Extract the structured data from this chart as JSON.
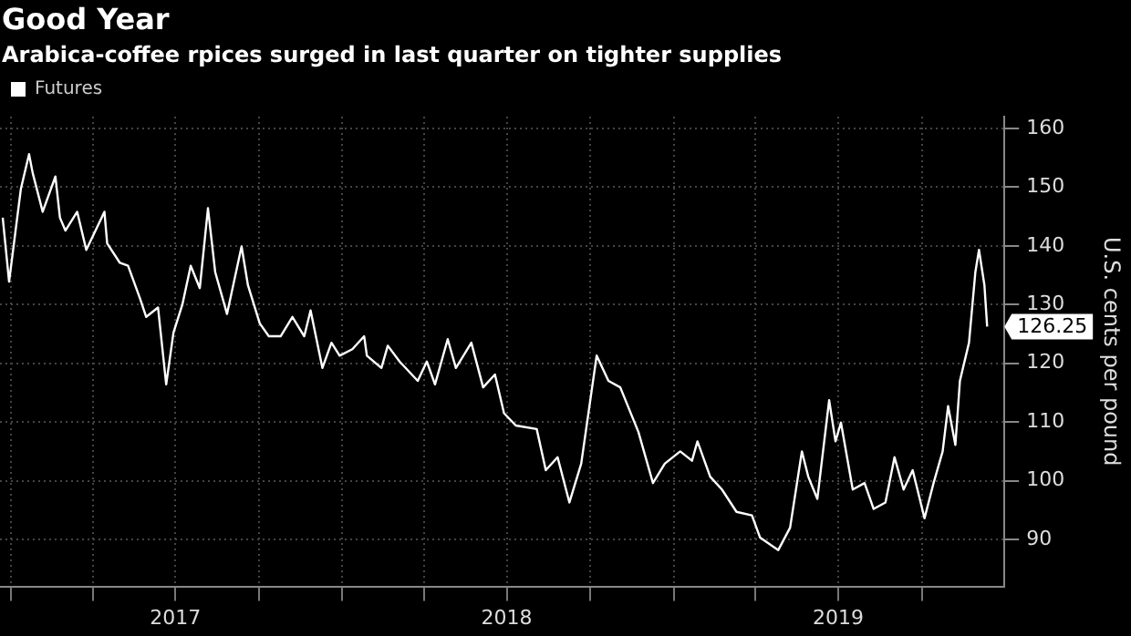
{
  "chart_data": {
    "type": "line",
    "title": "Good Year",
    "subtitle": "Arabica-coffee rpices surged in last quarter on tighter supplies",
    "ylabel": "U.S. cents per pound",
    "legend": "top left",
    "grid": true,
    "marker": "none",
    "line_style": "solid",
    "xlim": [
      "2016-12-20",
      "2019-12-31"
    ],
    "ylim": [
      82,
      162
    ],
    "xticks": [
      {
        "value": "2017-01-01",
        "label": null
      },
      {
        "value": "2017-04-01",
        "label": null
      },
      {
        "value": "2017-07-01",
        "label": "2017"
      },
      {
        "value": "2017-10-01",
        "label": null
      },
      {
        "value": "2018-01-01",
        "label": null
      },
      {
        "value": "2018-04-01",
        "label": null
      },
      {
        "value": "2018-07-01",
        "label": "2018"
      },
      {
        "value": "2018-10-01",
        "label": null
      },
      {
        "value": "2019-01-01",
        "label": null
      },
      {
        "value": "2019-04-01",
        "label": null
      },
      {
        "value": "2019-07-01",
        "label": "2019"
      },
      {
        "value": "2019-10-01",
        "label": null
      }
    ],
    "yticks": [
      90,
      100,
      110,
      120,
      130,
      140,
      150,
      160
    ],
    "annotations": [
      {
        "text": "126.25",
        "x": "2019-12-12",
        "y": 126.25
      }
    ],
    "series": [
      {
        "name": "Futures",
        "color": "#ffffff",
        "x": [
          "2016-12-23",
          "2016-12-30",
          "2017-01-12",
          "2017-01-21",
          "2017-01-25",
          "2017-02-05",
          "2017-02-19",
          "2017-02-24",
          "2017-03-02",
          "2017-03-15",
          "2017-03-25",
          "2017-04-14",
          "2017-04-17",
          "2017-05-01",
          "2017-05-10",
          "2017-05-23",
          "2017-05-30",
          "2017-06-12",
          "2017-06-21",
          "2017-06-29",
          "2017-07-09",
          "2017-07-18",
          "2017-07-28",
          "2017-08-06",
          "2017-08-14",
          "2017-08-27",
          "2017-09-12",
          "2017-09-19",
          "2017-10-02",
          "2017-10-12",
          "2017-10-25",
          "2017-11-07",
          "2017-11-20",
          "2017-11-27",
          "2017-12-10",
          "2017-12-20",
          "2017-12-29",
          "2018-01-12",
          "2018-01-25",
          "2018-01-28",
          "2018-02-13",
          "2018-02-20",
          "2018-03-05",
          "2018-03-25",
          "2018-04-04",
          "2018-04-13",
          "2018-04-27",
          "2018-05-06",
          "2018-05-23",
          "2018-06-05",
          "2018-06-18",
          "2018-06-28",
          "2018-07-11",
          "2018-08-03",
          "2018-08-13",
          "2018-08-26",
          "2018-09-08",
          "2018-09-21",
          "2018-10-08",
          "2018-10-21",
          "2018-11-03",
          "2018-11-23",
          "2018-12-09",
          "2018-12-22",
          "2019-01-08",
          "2019-01-21",
          "2019-01-27",
          "2019-02-10",
          "2019-02-23",
          "2019-03-11",
          "2019-03-28",
          "2019-04-06",
          "2019-04-26",
          "2019-05-09",
          "2019-05-22",
          "2019-05-29",
          "2019-06-08",
          "2019-06-21",
          "2019-06-28",
          "2019-07-04",
          "2019-07-17",
          "2019-07-30",
          "2019-08-09",
          "2019-08-22",
          "2019-09-01",
          "2019-09-11",
          "2019-09-21",
          "2019-10-04",
          "2019-10-14",
          "2019-10-24",
          "2019-10-30",
          "2019-11-07",
          "2019-11-12",
          "2019-11-22",
          "2019-11-29",
          "2019-12-03",
          "2019-12-09",
          "2019-12-12"
        ],
        "values": [
          144.8,
          133.9,
          149.7,
          155.6,
          152.4,
          145.8,
          151.8,
          144.8,
          142.6,
          145.8,
          139.3,
          145.8,
          140.4,
          137.1,
          136.6,
          131.1,
          127.9,
          129.5,
          116.4,
          125.2,
          130.1,
          136.6,
          132.8,
          146.4,
          135.5,
          128.4,
          139.9,
          133.3,
          126.8,
          124.6,
          124.6,
          127.9,
          124.6,
          129,
          119.2,
          123.5,
          121.3,
          122.4,
          124.6,
          121.3,
          119.2,
          123,
          120.3,
          117,
          120.3,
          116.4,
          124.1,
          119.2,
          123.5,
          115.9,
          118.1,
          111.5,
          109.4,
          108.8,
          101.8,
          104,
          96.3,
          102.9,
          121.3,
          117,
          115.9,
          108.3,
          99.6,
          102.9,
          105,
          103.4,
          106.7,
          100.7,
          98.5,
          94.7,
          94.1,
          90.3,
          88.2,
          92,
          105,
          100.7,
          96.9,
          113.7,
          106.7,
          109.9,
          98.5,
          99.6,
          95.2,
          96.3,
          104,
          98.5,
          101.8,
          93.6,
          99.6,
          105,
          112.7,
          106.1,
          117,
          123.5,
          135.5,
          139.3,
          133.3,
          126.25
        ]
      }
    ]
  }
}
